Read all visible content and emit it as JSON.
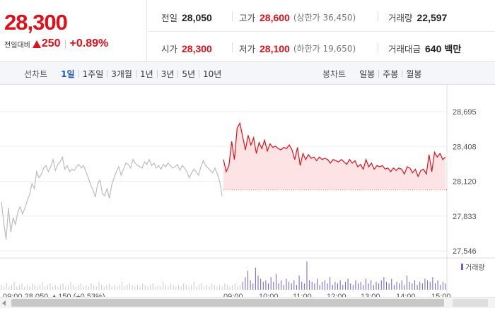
{
  "summary": {
    "price": "28,300",
    "change_label": "전일대비",
    "change_value": "250",
    "change_rate": "+0.89%",
    "prev_close_label": "전일",
    "prev_close": "28,050",
    "open_label": "시가",
    "open": "28,300",
    "high_label": "고가",
    "high": "28,600",
    "upper_limit": "(상한가 36,450)",
    "low_label": "저가",
    "low": "28,100",
    "lower_limit": "(하한가 19,650)",
    "volume_label": "거래량",
    "volume": "22,597",
    "amount_label": "거래대금",
    "amount": "640",
    "amount_unit": "백만"
  },
  "tabs": {
    "line_title": "선차트",
    "line_tabs": [
      "1일",
      "1주일",
      "3개월",
      "1년",
      "3년",
      "5년",
      "10년"
    ],
    "line_active": "1일",
    "candle_title": "봉차트",
    "candle_tabs": [
      "일봉",
      "주봉",
      "월봉"
    ]
  },
  "colors": {
    "up": "#e0101a",
    "prev_day_line": "#bdbdbd",
    "volume": "#6d5fd1",
    "area_fill": "#fde3e3"
  },
  "chart_data": {
    "type": "line",
    "y_ticks": [
      "28,695",
      "28,408",
      "28,120",
      "27,833",
      "27,546"
    ],
    "ylim": [
      27546,
      28695
    ],
    "reference_line": 28050,
    "legend": "거래량",
    "series": [
      {
        "values": [
          27950,
          27780,
          27640,
          27900,
          27700,
          27820,
          27760,
          27870,
          27910,
          27850,
          27900,
          27960,
          28010,
          28100,
          28060,
          28200,
          28150,
          28180,
          28230,
          28250,
          28200,
          28240,
          28300,
          28210,
          28260,
          28280,
          28320,
          28220,
          28250,
          28200,
          28220,
          28210,
          28240,
          28260,
          28230,
          28250,
          28200,
          28150,
          28090,
          28050,
          27990,
          28100,
          28130,
          28020,
          28000,
          28060,
          27980,
          28090,
          28150,
          28200,
          28240,
          28170,
          28220,
          28270,
          28260,
          28230,
          28300,
          28270,
          28250,
          28240,
          28230,
          28280,
          28260,
          28300,
          28250,
          28270,
          28230,
          28250,
          28220,
          28260,
          28240,
          28270,
          28250,
          28230,
          28240,
          28260,
          28210,
          28250,
          28230,
          28200,
          28150,
          28190,
          28220,
          28200,
          28170,
          28240,
          28290,
          28250,
          28230,
          28210,
          28190,
          28230,
          28180,
          28120,
          28000
        ]
      },
      {
        "values": [
          28300,
          28200,
          28250,
          28450,
          28300,
          28560,
          28600,
          28490,
          28380,
          28500,
          28420,
          28480,
          28350,
          28440,
          28390,
          28460,
          28370,
          28430,
          28400,
          28410,
          28390,
          28380,
          28400,
          28390,
          28420,
          28380,
          28300,
          28400,
          28250,
          28350,
          28300,
          28340,
          28310,
          28320,
          28290,
          28320,
          28300,
          28310,
          28300,
          28270,
          28300,
          28290,
          28280,
          28300,
          28280,
          28260,
          28300,
          28270,
          28290,
          28240,
          28260,
          28220,
          28300,
          28240,
          28270,
          28220,
          28250,
          28240,
          28250,
          28220,
          28230,
          28200,
          28230,
          28210,
          28230,
          28220,
          28180,
          28240,
          28230,
          28190,
          28220,
          28160,
          28210,
          28220,
          28180,
          28340,
          28200,
          28360,
          28320,
          28350,
          28300,
          28320
        ]
      }
    ],
    "volume": [
      3,
      2,
      4,
      2,
      3,
      5,
      2,
      3,
      4,
      2,
      3,
      2,
      4,
      3,
      2,
      3,
      5,
      2,
      3,
      4,
      2,
      3,
      2,
      3,
      4,
      2,
      3,
      5,
      3,
      2,
      3,
      4,
      2,
      3,
      2,
      4,
      3,
      2,
      5,
      3,
      2,
      3,
      4,
      2,
      3,
      2,
      3,
      5,
      2,
      3,
      4,
      3,
      2,
      3,
      2,
      4,
      3,
      2,
      3,
      4,
      2,
      3,
      2,
      5,
      3,
      2,
      4,
      3,
      2,
      3,
      2,
      4,
      3,
      2,
      3,
      5,
      2,
      3,
      4,
      2,
      3,
      2,
      4,
      3,
      2,
      3,
      2,
      4,
      3,
      2,
      3,
      4,
      2,
      3,
      5,
      8,
      12,
      6,
      4,
      14,
      9,
      7,
      5,
      6,
      4,
      8,
      5,
      10,
      4,
      6,
      3,
      7,
      5,
      4,
      6,
      3,
      9,
      5,
      4,
      18,
      6,
      5,
      4,
      7,
      3,
      5,
      6,
      4,
      8,
      3,
      5,
      4,
      6,
      3,
      5,
      7,
      4,
      3,
      6,
      4,
      5,
      3,
      7,
      4,
      6,
      3,
      5,
      4,
      6,
      8,
      5,
      4,
      7,
      3,
      5,
      4,
      6,
      3,
      9,
      5,
      4,
      6,
      3,
      5,
      4,
      7,
      6,
      5,
      8,
      4,
      6,
      3,
      5,
      4
    ]
  },
  "x_axis_labels": [
    "09:00 28,050 ▲150 (+0.53%)",
    "09:00",
    "10:00",
    "11:00",
    "12:00",
    "13:00",
    "14:00",
    "15:00"
  ]
}
